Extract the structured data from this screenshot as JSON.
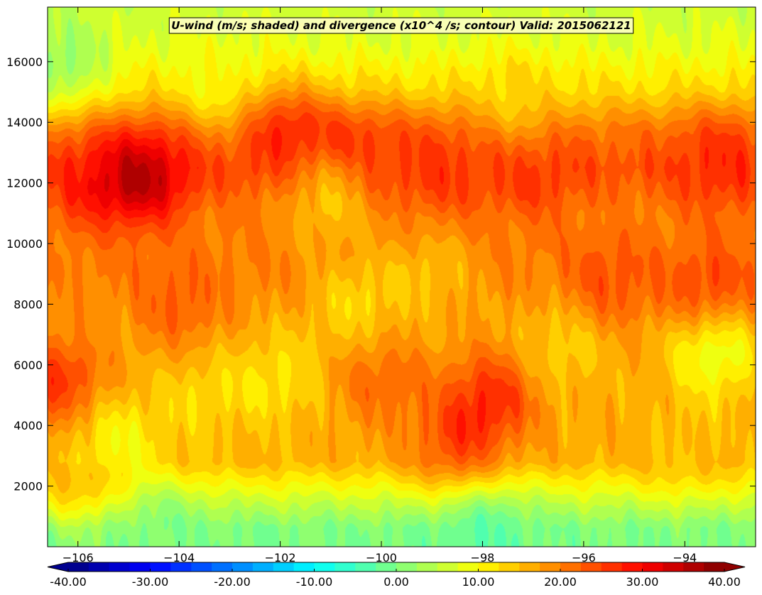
{
  "chart_data": {
    "type": "heatmap",
    "title": "U-wind (m/s; shaded) and divergence (x10^4 /s; contour) Valid: 2015062121",
    "xlabel": "",
    "ylabel": "",
    "xlim": [
      -106.6,
      -92.6
    ],
    "ylim": [
      0,
      17800
    ],
    "x_ticks": [
      -106,
      -104,
      -102,
      -100,
      -98,
      -96,
      -94
    ],
    "x_tick_labels": [
      "−106",
      "−104",
      "−102",
      "−100",
      "−98",
      "−96",
      "−94"
    ],
    "y_ticks": [
      2000,
      4000,
      6000,
      8000,
      10000,
      12000,
      14000,
      16000
    ],
    "y_tick_labels": [
      "2000",
      "4000",
      "6000",
      "8000",
      "10000",
      "12000",
      "14000",
      "16000"
    ],
    "colorbar": {
      "range": [
        -40,
        40
      ],
      "step": 2.5,
      "extend": "both",
      "tick_values": [
        -40,
        -30,
        -20,
        -10,
        0,
        10,
        20,
        30,
        40
      ],
      "tick_labels": [
        "-40.00",
        "-30.00",
        "-20.00",
        "-10.00",
        "0.00",
        "10.00",
        "20.00",
        "30.00",
        "40.00"
      ]
    },
    "fields": {
      "u_wind_background": [
        {
          "z": 0,
          "u": 0
        },
        {
          "z": 600,
          "u": 0
        },
        {
          "z": 1500,
          "u": 6
        },
        {
          "z": 2800,
          "u": 16
        },
        {
          "z": 5000,
          "u": 17
        },
        {
          "z": 7000,
          "u": 17
        },
        {
          "z": 9000,
          "u": 20
        },
        {
          "z": 11000,
          "u": 20
        },
        {
          "z": 12500,
          "u": 24
        },
        {
          "z": 13700,
          "u": 21
        },
        {
          "z": 15000,
          "u": 13
        },
        {
          "z": 16500,
          "u": 8
        },
        {
          "z": 17800,
          "u": 6
        }
      ],
      "features": [
        {
          "lon": -104.7,
          "z": 12200,
          "u_peak": 35
        },
        {
          "lon": -102.0,
          "z": 13600,
          "u_peak": 28
        },
        {
          "lon": -100.5,
          "z": 12800,
          "u_peak": 27
        },
        {
          "lon": -98.8,
          "z": 12400,
          "u_peak": 26
        },
        {
          "lon": -97.0,
          "z": 12400,
          "u_peak": 26
        },
        {
          "lon": -93.3,
          "z": 12600,
          "u_peak": 27
        },
        {
          "lon": -105.8,
          "z": 12000,
          "u_peak": 27
        },
        {
          "lon": -106.4,
          "z": 5500,
          "u_peak": 26
        },
        {
          "lon": -106.0,
          "z": 2500,
          "u_peak": 16
        },
        {
          "lon": -97.8,
          "z": 5000,
          "u_peak": 26
        },
        {
          "lon": -98.5,
          "z": 3400,
          "u_peak": 24
        },
        {
          "lon": -100.0,
          "z": 5500,
          "u_peak": 22
        },
        {
          "lon": -95.5,
          "z": 8800,
          "u_peak": 24
        },
        {
          "lon": -93.5,
          "z": 8400,
          "u_peak": 26
        },
        {
          "lon": -100.5,
          "z": 8000,
          "u_peak": 13
        },
        {
          "lon": -101.0,
          "z": 11500,
          "u_peak": 13
        },
        {
          "lon": -104.0,
          "z": 8000,
          "u_peak": 23
        },
        {
          "lon": -103.5,
          "z": 5000,
          "u_peak": 13
        },
        {
          "lon": -102.0,
          "z": 5500,
          "u_peak": 12
        },
        {
          "lon": -93.4,
          "z": 6500,
          "u_peak": 7
        },
        {
          "lon": -97.3,
          "z": 14800,
          "u_peak": 13
        },
        {
          "lon": -94.0,
          "z": 3500,
          "u_peak": 15
        },
        {
          "lon": -106.3,
          "z": 16000,
          "u_peak": 2
        },
        {
          "lon": -103.0,
          "z": 15400,
          "u_peak": 9
        },
        {
          "lon": -105.2,
          "z": 3500,
          "u_peak": 10
        },
        {
          "lon": -98.0,
          "z": 400,
          "u_peak": -3
        },
        {
          "lon": -104.5,
          "z": 400,
          "u_peak": 0
        },
        {
          "lon": -96.5,
          "z": 6500,
          "u_peak": 13
        },
        {
          "lon": -99.0,
          "z": 9000,
          "u_peak": 15
        }
      ]
    }
  }
}
